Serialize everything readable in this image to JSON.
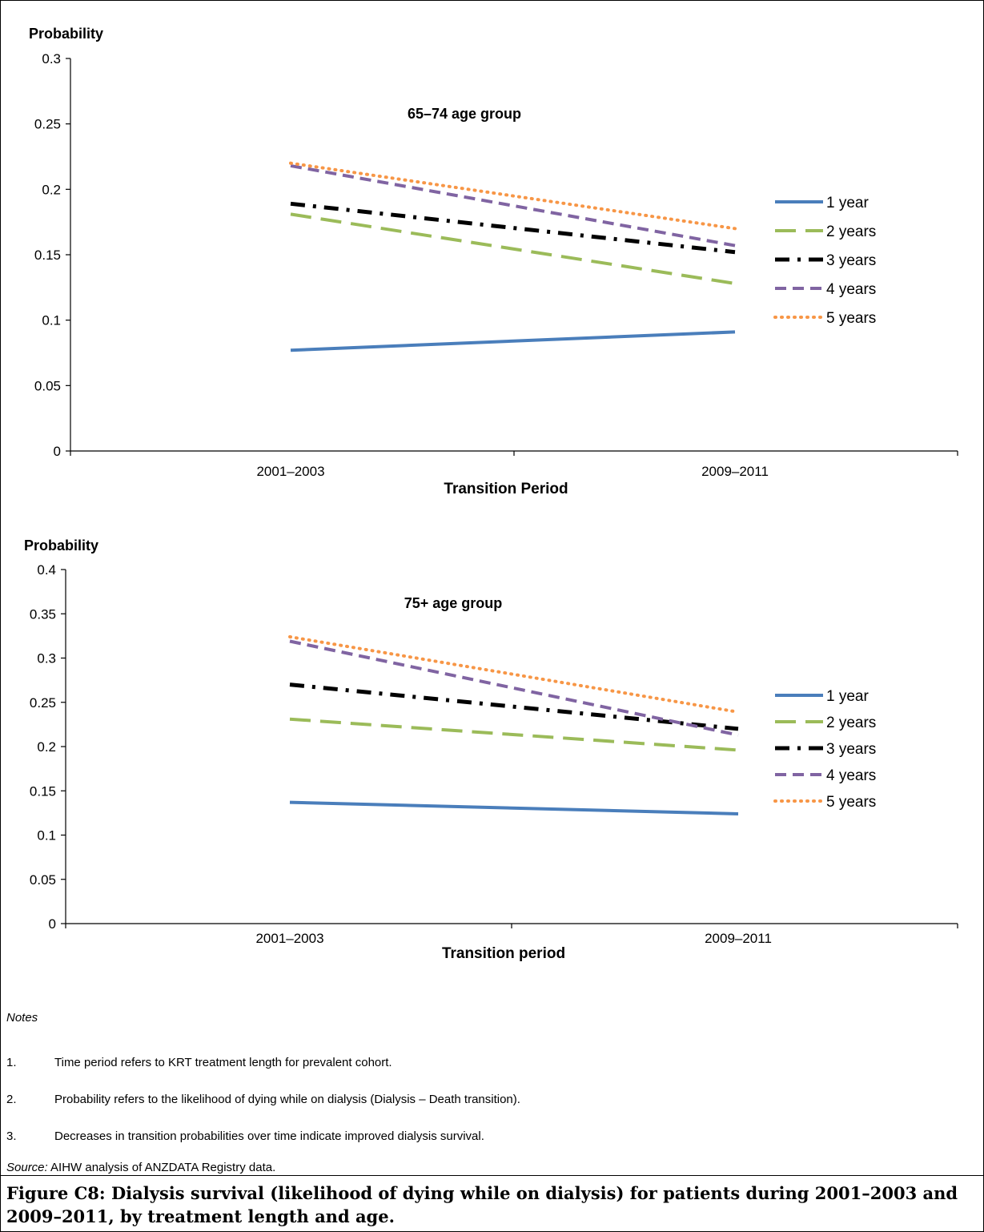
{
  "chart_data": [
    {
      "type": "line",
      "title": "65–74 age group",
      "ylabel": "Probability",
      "xlabel": "Transition Period",
      "categories": [
        "2001–2003",
        "2009–2011"
      ],
      "ylim": [
        0,
        0.3
      ],
      "yticks": [
        "0",
        "0.05",
        "0.1",
        "0.15",
        "0.2",
        "0.25",
        "0.3"
      ],
      "legend_position": "right",
      "series": [
        {
          "name": "1 year",
          "values": [
            0.077,
            0.091
          ],
          "color": "#4a7ebb",
          "style": "solid"
        },
        {
          "name": "2 years",
          "values": [
            0.181,
            0.128
          ],
          "color": "#9bbb59",
          "style": "long-dash"
        },
        {
          "name": "3 years",
          "values": [
            0.189,
            0.152
          ],
          "color": "#000000",
          "style": "dash-dot"
        },
        {
          "name": "4 years",
          "values": [
            0.218,
            0.157
          ],
          "color": "#8064a2",
          "style": "dash"
        },
        {
          "name": "5 years",
          "values": [
            0.22,
            0.17
          ],
          "color": "#f79646",
          "style": "dot"
        }
      ]
    },
    {
      "type": "line",
      "title": "75+ age group",
      "ylabel": "Probability",
      "xlabel": "Transition period",
      "categories": [
        "2001–2003",
        "2009–2011"
      ],
      "ylim": [
        0,
        0.4
      ],
      "yticks": [
        "0",
        "0.05",
        "0.1",
        "0.15",
        "0.2",
        "0.25",
        "0.3",
        "0.35",
        "0.4"
      ],
      "legend_position": "right",
      "series": [
        {
          "name": "1 year",
          "values": [
            0.137,
            0.124
          ],
          "color": "#4a7ebb",
          "style": "solid"
        },
        {
          "name": "2 years",
          "values": [
            0.231,
            0.196
          ],
          "color": "#9bbb59",
          "style": "long-dash"
        },
        {
          "name": "3 years",
          "values": [
            0.27,
            0.22
          ],
          "color": "#000000",
          "style": "dash-dot"
        },
        {
          "name": "4 years",
          "values": [
            0.319,
            0.213
          ],
          "color": "#8064a2",
          "style": "dash"
        },
        {
          "name": "5 years",
          "values": [
            0.324,
            0.239
          ],
          "color": "#f79646",
          "style": "dot"
        }
      ]
    }
  ],
  "notes": {
    "heading": "Notes",
    "items": [
      {
        "num": "1.",
        "text": "Time period refers to KRT treatment length for prevalent cohort."
      },
      {
        "num": "2.",
        "text": "Probability refers to the likelihood of dying while on dialysis (Dialysis – Death transition)."
      },
      {
        "num": "3.",
        "text": "Decreases in transition probabilities over time indicate improved dialysis survival."
      }
    ]
  },
  "source": {
    "label": "Source:",
    "text": " AIHW analysis of ANZDATA Registry data."
  },
  "caption": "Figure C8: Dialysis survival (likelihood of dying while on dialysis) for patients during 2001–2003 and 2009–2011, by treatment length and age."
}
